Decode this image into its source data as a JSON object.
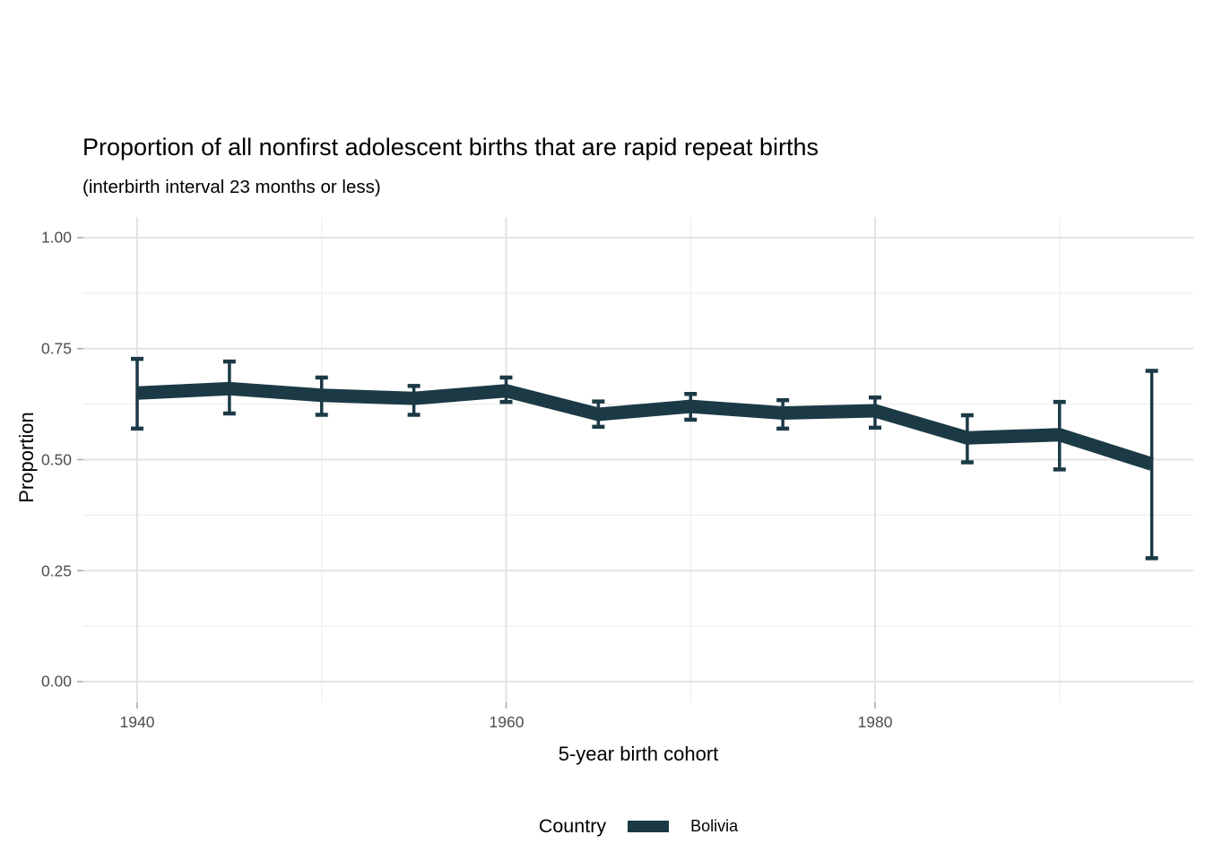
{
  "colors": {
    "series_line": "#1b3a46",
    "grid_major": "#e3e3e3",
    "grid_minor": "#eeeeee",
    "axis_tick": "#a8a8a8",
    "tick_label_text": "#4d4d4d",
    "text": "#000000",
    "background": "#ffffff"
  },
  "chart_data": {
    "type": "line",
    "title": "Proportion of all nonfirst adolescent births that are rapid repeat births",
    "subtitle": "(interbirth interval 23 months or less)",
    "xlabel": "5-year birth cohort",
    "ylabel": "Proportion",
    "x_tick_labels": [
      "1940",
      "1960",
      "1980"
    ],
    "x_tick_values": [
      1940,
      1960,
      1980
    ],
    "x_minor_values": [
      1950,
      1970,
      1990
    ],
    "y_tick_labels": [
      "1.00",
      "0.75",
      "0.50",
      "0.25",
      "0.00"
    ],
    "y_tick_values": [
      1.0,
      0.75,
      0.5,
      0.25,
      0.0
    ],
    "y_minor_values": [
      0.875,
      0.625,
      0.375,
      0.125
    ],
    "xlim": [
      1937.1,
      1997.3
    ],
    "ylim": [
      -0.046,
      1.046
    ],
    "grid": "major and minor gridlines, light gray on white, no panel border",
    "legend": {
      "title": "Country",
      "position": "bottom-center",
      "entries": [
        {
          "label": "Bolivia",
          "color": "#1b3a46"
        }
      ]
    },
    "series": [
      {
        "name": "Bolivia",
        "color": "#1b3a46",
        "x": [
          1940,
          1945,
          1950,
          1955,
          1960,
          1965,
          1970,
          1975,
          1980,
          1985,
          1990,
          1995
        ],
        "y": [
          0.65,
          0.66,
          0.645,
          0.638,
          0.655,
          0.602,
          0.62,
          0.605,
          0.61,
          0.549,
          0.556,
          0.49
        ],
        "ymin": [
          0.57,
          0.604,
          0.601,
          0.601,
          0.63,
          0.574,
          0.59,
          0.57,
          0.572,
          0.494,
          0.478,
          0.278
        ],
        "ymax": [
          0.727,
          0.721,
          0.685,
          0.666,
          0.685,
          0.631,
          0.648,
          0.634,
          0.64,
          0.6,
          0.63,
          0.7
        ],
        "error_bars": true
      }
    ]
  }
}
